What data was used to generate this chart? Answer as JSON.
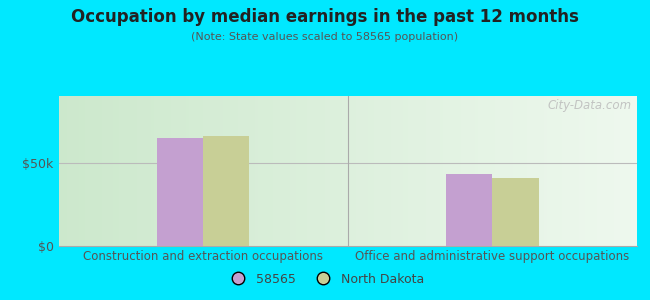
{
  "title": "Occupation by median earnings in the past 12 months",
  "subtitle": "(Note: State values scaled to 58565 population)",
  "categories": [
    "Construction and extraction occupations",
    "Office and administrative support occupations"
  ],
  "values_58565": [
    65000,
    43000
  ],
  "values_nd": [
    66000,
    41000
  ],
  "color_58565": "#c4a0d0",
  "color_nd": "#c8cf96",
  "ylim": [
    0,
    90000
  ],
  "yticks": [
    0,
    50000
  ],
  "ytick_labels": [
    "$0",
    "$50k"
  ],
  "background_outer": "#00e8ff",
  "background_inner_left": "#cce8cc",
  "background_inner_right": "#eef8ee",
  "legend_58565": "58565",
  "legend_nd": "North Dakota",
  "bar_width": 0.32,
  "watermark": "City-Data.com"
}
